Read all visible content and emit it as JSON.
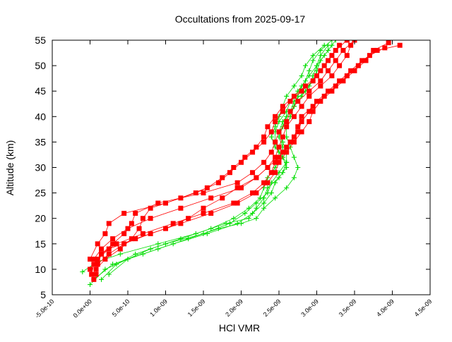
{
  "chart_data": {
    "type": "scatter",
    "title": "Occultations from 2025-09-17",
    "xlabel": "HCl VMR",
    "ylabel": "Altitude (km)",
    "xlim": [
      -5e-10,
      4.5e-09
    ],
    "ylim": [
      5,
      55
    ],
    "xticks": [
      -5e-10,
      0,
      5e-10,
      1e-09,
      1.5e-09,
      2e-09,
      2.5e-09,
      3e-09,
      3.5e-09,
      4e-09,
      4.5e-09
    ],
    "xtick_labels": [
      "-5.0e-10",
      "0.0e+00",
      "5.0e-10",
      "1.0e-09",
      "1.5e-09",
      "2.0e-09",
      "2.5e-09",
      "3.0e-09",
      "3.5e-09",
      "4.0e-09",
      "4.5e-09"
    ],
    "yticks": [
      5,
      10,
      15,
      20,
      25,
      30,
      35,
      40,
      45,
      50,
      55
    ],
    "ytick_labels": [
      "5",
      "10",
      "15",
      "20",
      "25",
      "30",
      "35",
      "40",
      "45",
      "50",
      "55"
    ],
    "grid": false,
    "series_style": [
      {
        "marker": "square",
        "color": "#ff0000"
      },
      {
        "marker": "plus",
        "color": "#00dd00"
      }
    ],
    "red_profiles": [
      [
        [
          5e-11,
          8
        ],
        [
          0.0,
          10
        ],
        [
          1e-10,
          12
        ],
        [
          2.5e-10,
          14
        ],
        [
          6e-10,
          16
        ],
        [
          1e-09,
          18
        ],
        [
          1.3e-09,
          20
        ],
        [
          1.5e-09,
          22
        ],
        [
          1.75e-09,
          24
        ],
        [
          1.95e-09,
          26
        ],
        [
          2.2e-09,
          28
        ],
        [
          2.35e-09,
          30
        ],
        [
          2.45e-09,
          32
        ],
        [
          2.5e-09,
          34
        ],
        [
          2.55e-09,
          36
        ],
        [
          2.6e-09,
          38
        ],
        [
          2.7e-09,
          40
        ],
        [
          2.8e-09,
          42
        ],
        [
          2.9e-09,
          44
        ],
        [
          3.05e-09,
          46
        ],
        [
          3.2e-09,
          48
        ],
        [
          3.3e-09,
          50
        ],
        [
          3.4e-09,
          52
        ],
        [
          3.45e-09,
          54
        ]
      ],
      [
        [
          2e-11,
          9
        ],
        [
          5e-11,
          11
        ],
        [
          1.5e-10,
          13
        ],
        [
          3.5e-10,
          15
        ],
        [
          7e-10,
          17
        ],
        [
          1.1e-09,
          19
        ],
        [
          1.5e-09,
          21
        ],
        [
          1.9e-09,
          23
        ],
        [
          2.15e-09,
          25
        ],
        [
          2.3e-09,
          27
        ],
        [
          2.4e-09,
          29
        ],
        [
          2.45e-09,
          31
        ],
        [
          2.55e-09,
          33
        ],
        [
          2.65e-09,
          35
        ],
        [
          2.75e-09,
          37
        ],
        [
          2.8e-09,
          39
        ],
        [
          2.9e-09,
          41
        ],
        [
          3e-09,
          43
        ],
        [
          3.15e-09,
          45
        ],
        [
          3.3e-09,
          47
        ],
        [
          3.45e-09,
          49
        ],
        [
          3.6e-09,
          51
        ],
        [
          3.8e-09,
          53
        ],
        [
          4.1e-09,
          54
        ]
      ],
      [
        [
          8e-11,
          10
        ],
        [
          2e-10,
          12
        ],
        [
          4e-10,
          14
        ],
        [
          5.5e-10,
          16
        ],
        [
          6.5e-10,
          18
        ],
        [
          7e-10,
          20
        ],
        [
          8e-10,
          22
        ],
        [
          1.2e-09,
          24
        ],
        [
          1.55e-09,
          26
        ],
        [
          1.75e-09,
          28
        ],
        [
          1.9e-09,
          30
        ],
        [
          2.05e-09,
          32
        ],
        [
          2.2e-09,
          34
        ],
        [
          2.3e-09,
          36
        ],
        [
          2.35e-09,
          38
        ],
        [
          2.45e-09,
          40
        ],
        [
          2.55e-09,
          42
        ],
        [
          2.7e-09,
          44
        ],
        [
          2.85e-09,
          46
        ],
        [
          3e-09,
          48
        ],
        [
          3.1e-09,
          50
        ],
        [
          3.2e-09,
          52
        ],
        [
          3.3e-09,
          54
        ]
      ],
      [
        [
          1e-10,
          11
        ],
        [
          1.5e-10,
          13
        ],
        [
          3e-10,
          15
        ],
        [
          4.5e-10,
          17
        ],
        [
          5.5e-10,
          19
        ],
        [
          6e-10,
          21
        ],
        [
          9e-10,
          23
        ],
        [
          1.5e-09,
          25
        ],
        [
          1.95e-09,
          27
        ],
        [
          2.15e-09,
          29
        ],
        [
          2.3e-09,
          31
        ],
        [
          2.4e-09,
          33
        ],
        [
          2.45e-09,
          35
        ],
        [
          2.5e-09,
          37
        ],
        [
          2.6e-09,
          39
        ],
        [
          2.65e-09,
          41
        ],
        [
          2.75e-09,
          43
        ],
        [
          2.9e-09,
          45
        ],
        [
          3.05e-09,
          47
        ],
        [
          3.15e-09,
          49
        ],
        [
          3.25e-09,
          51
        ],
        [
          3.35e-09,
          53
        ],
        [
          3.5e-09,
          55
        ]
      ],
      [
        [
          5e-11,
          12
        ],
        [
          1.5e-10,
          14
        ],
        [
          3e-10,
          16
        ],
        [
          5e-10,
          18
        ],
        [
          8e-10,
          20
        ],
        [
          1.2e-09,
          22
        ],
        [
          1.6e-09,
          24
        ],
        [
          2e-09,
          26
        ],
        [
          2.2e-09,
          28
        ],
        [
          2.35e-09,
          30
        ],
        [
          2.5e-09,
          32
        ],
        [
          2.6e-09,
          34
        ],
        [
          2.7e-09,
          36
        ],
        [
          2.75e-09,
          38
        ],
        [
          2.8e-09,
          40
        ],
        [
          2.95e-09,
          42
        ],
        [
          3.1e-09,
          44
        ],
        [
          3.25e-09,
          46
        ],
        [
          3.4e-09,
          48
        ],
        [
          3.55e-09,
          50
        ],
        [
          3.7e-09,
          52
        ],
        [
          3.9e-09,
          53.5
        ]
      ],
      [
        [
          0.0,
          12
        ],
        [
          1e-10,
          15
        ],
        [
          2e-10,
          17
        ],
        [
          2.5e-10,
          19
        ],
        [
          4.5e-10,
          21
        ],
        [
          1e-09,
          23
        ],
        [
          1.4e-09,
          25
        ],
        [
          1.7e-09,
          27
        ],
        [
          1.85e-09,
          29
        ],
        [
          2e-09,
          31
        ],
        [
          2.15e-09,
          33
        ],
        [
          2.3e-09,
          35
        ],
        [
          2.4e-09,
          37
        ],
        [
          2.45e-09,
          39
        ],
        [
          2.55e-09,
          41
        ],
        [
          2.65e-09,
          43
        ],
        [
          2.8e-09,
          45
        ],
        [
          2.95e-09,
          47
        ],
        [
          3.05e-09,
          49
        ],
        [
          3.15e-09,
          51
        ],
        [
          3.25e-09,
          53
        ],
        [
          3.4e-09,
          55
        ]
      ],
      [
        [
          8e-11,
          9
        ],
        [
          1e-10,
          11
        ],
        [
          2.5e-10,
          13
        ],
        [
          4.5e-10,
          15
        ],
        [
          8e-10,
          17
        ],
        [
          1.2e-09,
          19
        ],
        [
          1.6e-09,
          21
        ],
        [
          1.95e-09,
          23
        ],
        [
          2.2e-09,
          25
        ],
        [
          2.35e-09,
          27
        ],
        [
          2.45e-09,
          29
        ],
        [
          2.5e-09,
          31
        ],
        [
          2.6e-09,
          33
        ],
        [
          2.7e-09,
          35
        ],
        [
          2.8e-09,
          37
        ],
        [
          2.9e-09,
          39
        ],
        [
          2.95e-09,
          41
        ],
        [
          3.05e-09,
          43
        ],
        [
          3.2e-09,
          45
        ],
        [
          3.35e-09,
          47
        ],
        [
          3.5e-09,
          49
        ],
        [
          3.65e-09,
          51
        ],
        [
          3.75e-09,
          53
        ],
        [
          3.95e-09,
          54.5
        ]
      ]
    ],
    "green_profiles": [
      [
        [
          -1e-10,
          9.5
        ],
        [
          1e-10,
          11.5
        ],
        [
          4e-10,
          13
        ],
        [
          9e-10,
          15
        ],
        [
          1.4e-09,
          17
        ],
        [
          1.8e-09,
          19
        ],
        [
          2.1e-09,
          20
        ],
        [
          2.2e-09,
          22
        ],
        [
          2.3e-09,
          24
        ],
        [
          2.35e-09,
          26
        ],
        [
          2.5e-09,
          28
        ],
        [
          2.6e-09,
          30
        ],
        [
          2.55e-09,
          32
        ],
        [
          2.45e-09,
          34
        ],
        [
          2.4e-09,
          36
        ],
        [
          2.45e-09,
          38
        ],
        [
          2.5e-09,
          40
        ],
        [
          2.55e-09,
          42
        ],
        [
          2.6e-09,
          44
        ],
        [
          2.7e-09,
          46
        ],
        [
          2.8e-09,
          48
        ],
        [
          2.85e-09,
          50
        ],
        [
          2.95e-09,
          52
        ],
        [
          3.1e-09,
          54
        ]
      ],
      [
        [
          0.0,
          7
        ],
        [
          2e-10,
          10
        ],
        [
          5e-10,
          12
        ],
        [
          9e-10,
          14
        ],
        [
          1.3e-09,
          16
        ],
        [
          1.7e-09,
          18
        ],
        [
          2e-09,
          19
        ],
        [
          2.2e-09,
          20
        ],
        [
          2.3e-09,
          22
        ],
        [
          2.45e-09,
          24
        ],
        [
          2.6e-09,
          26
        ],
        [
          2.7e-09,
          28
        ],
        [
          2.75e-09,
          30
        ],
        [
          2.7e-09,
          32
        ],
        [
          2.65e-09,
          34
        ],
        [
          2.6e-09,
          36
        ],
        [
          2.6e-09,
          38
        ],
        [
          2.65e-09,
          40
        ],
        [
          2.7e-09,
          42
        ],
        [
          2.8e-09,
          44
        ],
        [
          2.9e-09,
          46
        ],
        [
          2.95e-09,
          48
        ],
        [
          3e-09,
          50
        ],
        [
          3.05e-09,
          52
        ],
        [
          3.15e-09,
          54
        ]
      ],
      [
        [
          5e-11,
          8
        ],
        [
          3e-10,
          11
        ],
        [
          7e-10,
          13
        ],
        [
          1.1e-09,
          15
        ],
        [
          1.55e-09,
          17
        ],
        [
          1.95e-09,
          19
        ],
        [
          2.15e-09,
          21
        ],
        [
          2.3e-09,
          23
        ],
        [
          2.4e-09,
          25
        ],
        [
          2.45e-09,
          27
        ],
        [
          2.55e-09,
          29
        ],
        [
          2.6e-09,
          31
        ],
        [
          2.5e-09,
          33
        ],
        [
          2.45e-09,
          35
        ],
        [
          2.45e-09,
          37
        ],
        [
          2.5e-09,
          39
        ],
        [
          2.6e-09,
          41
        ],
        [
          2.65e-09,
          43
        ],
        [
          2.75e-09,
          45
        ],
        [
          2.85e-09,
          47
        ],
        [
          2.9e-09,
          49
        ],
        [
          2.95e-09,
          51
        ],
        [
          3.05e-09,
          53
        ],
        [
          3.2e-09,
          55
        ]
      ],
      [
        [
          2.5e-10,
          9
        ],
        [
          5e-10,
          12
        ],
        [
          8e-10,
          14
        ],
        [
          1.2e-09,
          16
        ],
        [
          1.6e-09,
          18
        ],
        [
          1.9e-09,
          20
        ],
        [
          2.1e-09,
          22
        ],
        [
          2.25e-09,
          24
        ],
        [
          2.3e-09,
          26
        ],
        [
          2.35e-09,
          28
        ],
        [
          2.45e-09,
          30
        ],
        [
          2.55e-09,
          32
        ],
        [
          2.55e-09,
          34
        ],
        [
          2.5e-09,
          36
        ],
        [
          2.55e-09,
          38
        ],
        [
          2.6e-09,
          40
        ],
        [
          2.7e-09,
          42
        ],
        [
          2.75e-09,
          44
        ],
        [
          2.8e-09,
          46
        ],
        [
          2.9e-09,
          48
        ],
        [
          3e-09,
          50
        ],
        [
          3.1e-09,
          52
        ],
        [
          3.2e-09,
          54
        ]
      ],
      [
        [
          1.5e-10,
          8
        ],
        [
          3.5e-10,
          11
        ],
        [
          6e-10,
          13
        ],
        [
          1e-09,
          15
        ],
        [
          1.5e-09,
          17
        ],
        [
          1.85e-09,
          19
        ],
        [
          2.05e-09,
          21
        ],
        [
          2.2e-09,
          23
        ],
        [
          2.35e-09,
          25
        ],
        [
          2.4e-09,
          27
        ],
        [
          2.5e-09,
          29
        ],
        [
          2.6e-09,
          31
        ],
        [
          2.6e-09,
          33
        ],
        [
          2.55e-09,
          35
        ],
        [
          2.5e-09,
          37
        ],
        [
          2.55e-09,
          39
        ],
        [
          2.65e-09,
          41
        ],
        [
          2.7e-09,
          43
        ],
        [
          2.85e-09,
          45
        ],
        [
          2.95e-09,
          47
        ],
        [
          3e-09,
          49
        ],
        [
          3.05e-09,
          51
        ],
        [
          3.15e-09,
          53
        ],
        [
          3.25e-09,
          55
        ]
      ]
    ]
  }
}
